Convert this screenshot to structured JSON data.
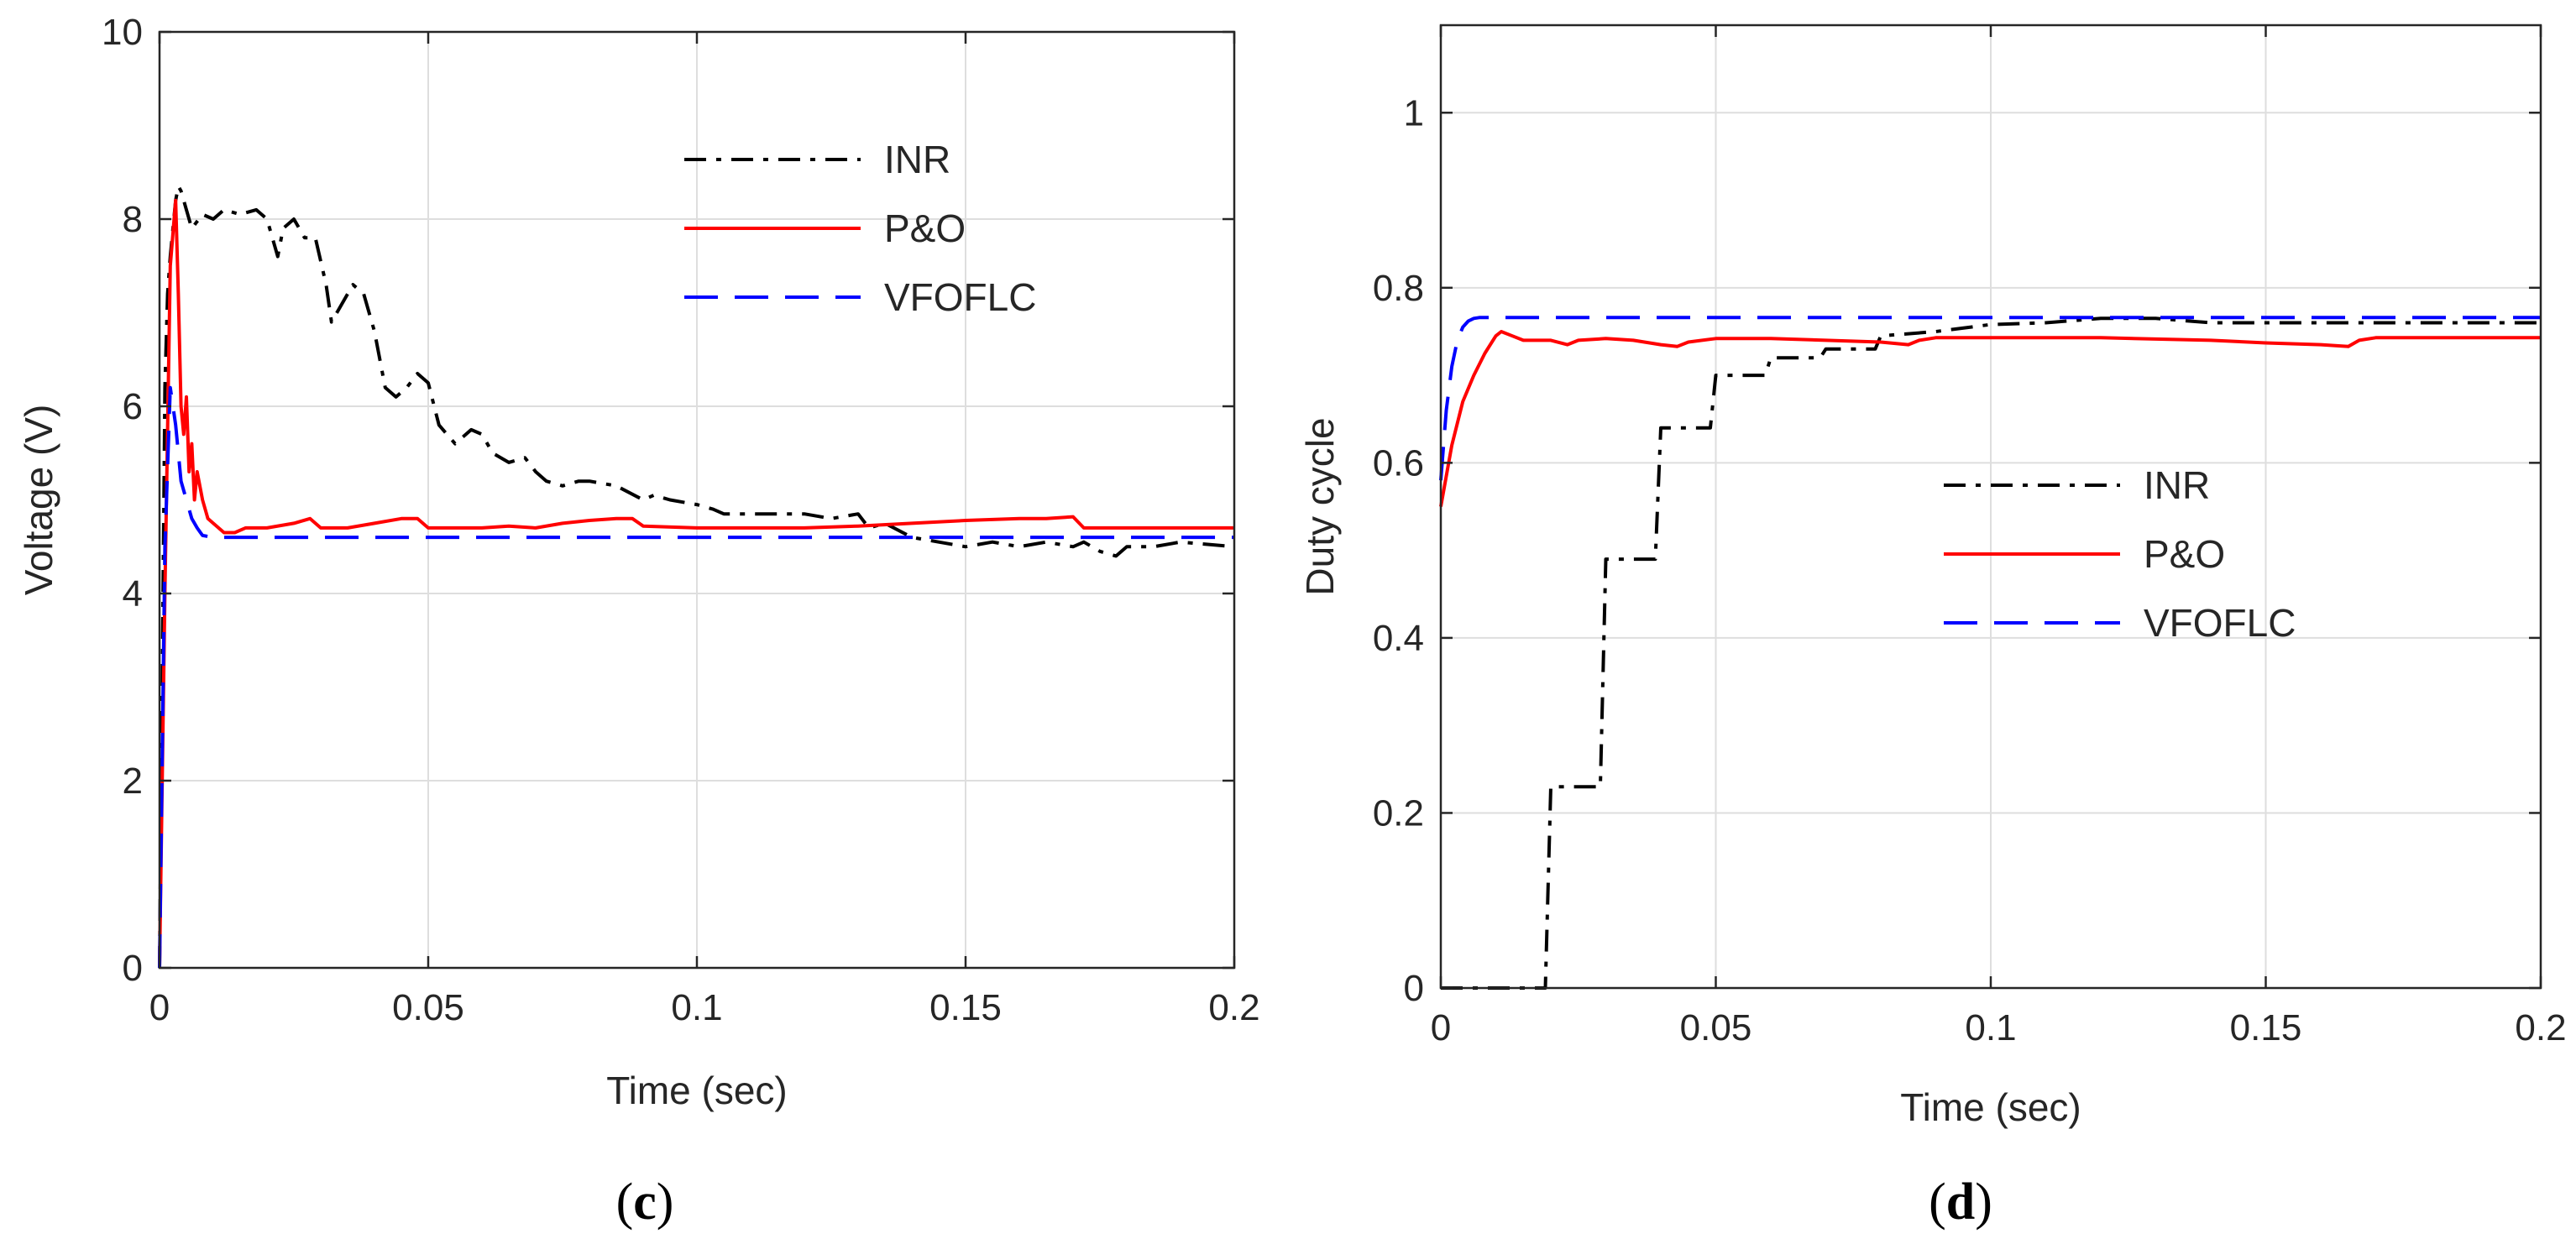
{
  "chart_data": [
    {
      "id": "c",
      "type": "line",
      "caption_letter": "c",
      "xlabel": "Time (sec)",
      "ylabel": "Voltage (V)",
      "xlim": [
        0,
        0.2
      ],
      "ylim": [
        0,
        10
      ],
      "xticks": [
        0,
        0.05,
        0.1,
        0.15,
        0.2
      ],
      "xtick_labels": [
        "0",
        "0.05",
        "0.1",
        "0.15",
        "0.2"
      ],
      "yticks": [
        0,
        2,
        4,
        6,
        8,
        10
      ],
      "ytick_labels": [
        "0",
        "2",
        "4",
        "6",
        "8",
        "10"
      ],
      "grid": true,
      "legend_placement": "top-right",
      "series": [
        {
          "name": "INR",
          "color": "#000000",
          "style": "dashdot",
          "x": [
            0,
            0.0005,
            0.001,
            0.0015,
            0.002,
            0.0025,
            0.003,
            0.0035,
            0.004,
            0.005,
            0.006,
            0.008,
            0.01,
            0.012,
            0.015,
            0.018,
            0.02,
            0.022,
            0.023,
            0.025,
            0.027,
            0.029,
            0.031,
            0.032,
            0.034,
            0.036,
            0.038,
            0.04,
            0.042,
            0.044,
            0.046,
            0.048,
            0.05,
            0.052,
            0.055,
            0.058,
            0.06,
            0.062,
            0.065,
            0.068,
            0.07,
            0.072,
            0.075,
            0.078,
            0.08,
            0.085,
            0.09,
            0.092,
            0.095,
            0.1,
            0.103,
            0.105,
            0.11,
            0.12,
            0.125,
            0.13,
            0.132,
            0.135,
            0.14,
            0.145,
            0.15,
            0.155,
            0.16,
            0.165,
            0.17,
            0.172,
            0.175,
            0.178,
            0.18,
            0.185,
            0.19,
            0.2
          ],
          "values": [
            0,
            3.0,
            6.2,
            7.2,
            7.6,
            7.9,
            8.2,
            8.35,
            8.3,
            8.1,
            7.9,
            8.05,
            8.0,
            8.1,
            8.05,
            8.1,
            8.0,
            7.6,
            7.9,
            8.0,
            7.8,
            7.8,
            7.3,
            6.9,
            7.1,
            7.3,
            7.2,
            6.8,
            6.2,
            6.1,
            6.2,
            6.35,
            6.25,
            5.8,
            5.6,
            5.75,
            5.7,
            5.5,
            5.4,
            5.45,
            5.3,
            5.2,
            5.15,
            5.2,
            5.2,
            5.15,
            5.0,
            5.05,
            5.0,
            4.95,
            4.9,
            4.85,
            4.85,
            4.85,
            4.8,
            4.85,
            4.7,
            4.75,
            4.6,
            4.55,
            4.5,
            4.55,
            4.5,
            4.55,
            4.5,
            4.55,
            4.45,
            4.4,
            4.5,
            4.5,
            4.55,
            4.5
          ]
        },
        {
          "name": "P&O",
          "color": "#ff0000",
          "style": "solid",
          "x": [
            0,
            0.001,
            0.002,
            0.003,
            0.0035,
            0.004,
            0.0045,
            0.005,
            0.0055,
            0.006,
            0.0065,
            0.007,
            0.008,
            0.009,
            0.01,
            0.012,
            0.014,
            0.016,
            0.02,
            0.025,
            0.028,
            0.03,
            0.035,
            0.04,
            0.045,
            0.048,
            0.05,
            0.055,
            0.06,
            0.065,
            0.07,
            0.075,
            0.08,
            0.085,
            0.088,
            0.09,
            0.1,
            0.11,
            0.12,
            0.13,
            0.14,
            0.15,
            0.16,
            0.165,
            0.17,
            0.172,
            0.175,
            0.18,
            0.19,
            0.2
          ],
          "values": [
            0,
            4.0,
            7.5,
            8.2,
            7.2,
            6.0,
            5.7,
            6.1,
            5.3,
            5.6,
            5.0,
            5.3,
            5.0,
            4.8,
            4.75,
            4.65,
            4.65,
            4.7,
            4.7,
            4.75,
            4.8,
            4.7,
            4.7,
            4.75,
            4.8,
            4.8,
            4.7,
            4.7,
            4.7,
            4.72,
            4.7,
            4.75,
            4.78,
            4.8,
            4.8,
            4.72,
            4.7,
            4.7,
            4.7,
            4.72,
            4.75,
            4.78,
            4.8,
            4.8,
            4.82,
            4.7,
            4.7,
            4.7,
            4.7,
            4.7
          ]
        },
        {
          "name": "VFOFLC",
          "color": "#0000ff",
          "style": "dashed",
          "x": [
            0,
            0.001,
            0.002,
            0.003,
            0.004,
            0.005,
            0.006,
            0.007,
            0.008,
            0.01,
            0.012,
            0.02,
            0.05,
            0.1,
            0.15,
            0.2
          ],
          "values": [
            0,
            4.5,
            6.2,
            5.8,
            5.2,
            5.0,
            4.8,
            4.7,
            4.62,
            4.6,
            4.6,
            4.6,
            4.6,
            4.6,
            4.6,
            4.6
          ]
        }
      ]
    },
    {
      "id": "d",
      "type": "line",
      "caption_letter": "d",
      "xlabel": "Time (sec)",
      "ylabel": "Duty cycle",
      "xlim": [
        0,
        0.2
      ],
      "ylim": [
        0,
        1.1
      ],
      "xticks": [
        0,
        0.05,
        0.1,
        0.15,
        0.2
      ],
      "xtick_labels": [
        "0",
        "0.05",
        "0.1",
        "0.15",
        "0.2"
      ],
      "yticks": [
        0,
        0.2,
        0.4,
        0.6,
        0.8,
        1
      ],
      "ytick_labels": [
        "0",
        "0.2",
        "0.4",
        "0.6",
        "0.8",
        "1"
      ],
      "grid": true,
      "legend_placement": "center-right",
      "series": [
        {
          "name": "INR",
          "color": "#000000",
          "style": "dashdot",
          "x": [
            0,
            0.019,
            0.02,
            0.029,
            0.03,
            0.039,
            0.04,
            0.049,
            0.05,
            0.059,
            0.06,
            0.069,
            0.07,
            0.079,
            0.08,
            0.09,
            0.1,
            0.11,
            0.12,
            0.13,
            0.14,
            0.15,
            0.16,
            0.17,
            0.18,
            0.19,
            0.2
          ],
          "values": [
            0,
            0,
            0.23,
            0.23,
            0.49,
            0.49,
            0.64,
            0.64,
            0.7,
            0.7,
            0.72,
            0.72,
            0.73,
            0.73,
            0.745,
            0.75,
            0.758,
            0.76,
            0.765,
            0.765,
            0.76,
            0.76,
            0.76,
            0.76,
            0.76,
            0.76,
            0.76
          ]
        },
        {
          "name": "P&O",
          "color": "#ff0000",
          "style": "solid",
          "x": [
            0,
            0.002,
            0.004,
            0.006,
            0.008,
            0.01,
            0.011,
            0.013,
            0.015,
            0.018,
            0.02,
            0.023,
            0.025,
            0.03,
            0.035,
            0.04,
            0.043,
            0.045,
            0.05,
            0.06,
            0.07,
            0.08,
            0.085,
            0.087,
            0.09,
            0.1,
            0.12,
            0.14,
            0.15,
            0.16,
            0.165,
            0.167,
            0.17,
            0.18,
            0.19,
            0.2
          ],
          "values": [
            0.55,
            0.62,
            0.67,
            0.7,
            0.725,
            0.745,
            0.75,
            0.745,
            0.74,
            0.74,
            0.74,
            0.735,
            0.74,
            0.742,
            0.74,
            0.735,
            0.733,
            0.738,
            0.742,
            0.742,
            0.74,
            0.738,
            0.735,
            0.74,
            0.743,
            0.743,
            0.743,
            0.74,
            0.737,
            0.735,
            0.733,
            0.74,
            0.743,
            0.743,
            0.743,
            0.743
          ]
        },
        {
          "name": "VFOFLC",
          "color": "#0000ff",
          "style": "dashed",
          "x": [
            0,
            0.001,
            0.002,
            0.003,
            0.004,
            0.005,
            0.006,
            0.007,
            0.01,
            0.05,
            0.1,
            0.15,
            0.2
          ],
          "values": [
            0.58,
            0.66,
            0.71,
            0.74,
            0.755,
            0.762,
            0.765,
            0.766,
            0.766,
            0.766,
            0.766,
            0.766,
            0.766
          ]
        }
      ]
    }
  ],
  "captions": {
    "c": {
      "open": "(",
      "letter": "c",
      "close": ")"
    },
    "d": {
      "open": "(",
      "letter": "d",
      "close": ")"
    }
  }
}
